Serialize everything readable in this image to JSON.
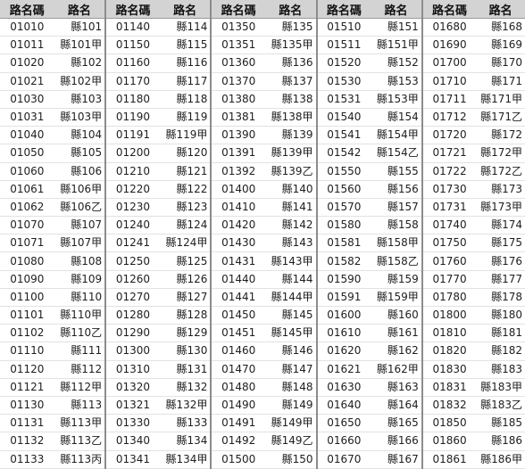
{
  "headers": [
    "路名碼",
    "路名"
  ],
  "rows": [
    [
      "01010",
      "縣101",
      "01140",
      "縣114",
      "01350",
      "縣135",
      "01510",
      "縣151",
      "01680",
      "縣168"
    ],
    [
      "01011",
      "縣101甲",
      "01150",
      "縣115",
      "01351",
      "縣135甲",
      "01511",
      "縣151甲",
      "01690",
      "縣169"
    ],
    [
      "01020",
      "縣102",
      "01160",
      "縣116",
      "01360",
      "縣136",
      "01520",
      "縣152",
      "01700",
      "縣170"
    ],
    [
      "01021",
      "縣102甲",
      "01170",
      "縣117",
      "01370",
      "縣137",
      "01530",
      "縣153",
      "01710",
      "縣171"
    ],
    [
      "01030",
      "縣103",
      "01180",
      "縣118",
      "01380",
      "縣138",
      "01531",
      "縣153甲",
      "01711",
      "縣171甲"
    ],
    [
      "01031",
      "縣103甲",
      "01190",
      "縣119",
      "01381",
      "縣138甲",
      "01540",
      "縣154",
      "01712",
      "縣171乙"
    ],
    [
      "01040",
      "縣104",
      "01191",
      "縣119甲",
      "01390",
      "縣139",
      "01541",
      "縣154甲",
      "01720",
      "縣172"
    ],
    [
      "01050",
      "縣105",
      "01200",
      "縣120",
      "01391",
      "縣139甲",
      "01542",
      "縣154乙",
      "01721",
      "縣172甲"
    ],
    [
      "01060",
      "縣106",
      "01210",
      "縣121",
      "01392",
      "縣139乙",
      "01550",
      "縣155",
      "01722",
      "縣172乙"
    ],
    [
      "01061",
      "縣106甲",
      "01220",
      "縣122",
      "01400",
      "縣140",
      "01560",
      "縣156",
      "01730",
      "縣173"
    ],
    [
      "01062",
      "縣106乙",
      "01230",
      "縣123",
      "01410",
      "縣141",
      "01570",
      "縣157",
      "01731",
      "縣173甲"
    ],
    [
      "01070",
      "縣107",
      "01240",
      "縣124",
      "01420",
      "縣142",
      "01580",
      "縣158",
      "01740",
      "縣174"
    ],
    [
      "01071",
      "縣107甲",
      "01241",
      "縣124甲",
      "01430",
      "縣143",
      "01581",
      "縣158甲",
      "01750",
      "縣175"
    ],
    [
      "01080",
      "縣108",
      "01250",
      "縣125",
      "01431",
      "縣143甲",
      "01582",
      "縣158乙",
      "01760",
      "縣176"
    ],
    [
      "01090",
      "縣109",
      "01260",
      "縣126",
      "01440",
      "縣144",
      "01590",
      "縣159",
      "01770",
      "縣177"
    ],
    [
      "01100",
      "縣110",
      "01270",
      "縣127",
      "01441",
      "縣144甲",
      "01591",
      "縣159甲",
      "01780",
      "縣178"
    ],
    [
      "01101",
      "縣110甲",
      "01280",
      "縣128",
      "01450",
      "縣145",
      "01600",
      "縣160",
      "01800",
      "縣180"
    ],
    [
      "01102",
      "縣110乙",
      "01290",
      "縣129",
      "01451",
      "縣145甲",
      "01610",
      "縣161",
      "01810",
      "縣181"
    ],
    [
      "01110",
      "縣111",
      "01300",
      "縣130",
      "01460",
      "縣146",
      "01620",
      "縣162",
      "01820",
      "縣182"
    ],
    [
      "01120",
      "縣112",
      "01310",
      "縣131",
      "01470",
      "縣147",
      "01621",
      "縣162甲",
      "01830",
      "縣183"
    ],
    [
      "01121",
      "縣112甲",
      "01320",
      "縣132",
      "01480",
      "縣148",
      "01630",
      "縣163",
      "01831",
      "縣183甲"
    ],
    [
      "01130",
      "縣113",
      "01321",
      "縣132甲",
      "01490",
      "縣149",
      "01640",
      "縣164",
      "01832",
      "縣183乙"
    ],
    [
      "01131",
      "縣113甲",
      "01330",
      "縣133",
      "01491",
      "縣149甲",
      "01650",
      "縣165",
      "01850",
      "縣185"
    ],
    [
      "01132",
      "縣113乙",
      "01340",
      "縣134",
      "01492",
      "縣149乙",
      "01660",
      "縣166",
      "01860",
      "縣186"
    ],
    [
      "01133",
      "縣113丙",
      "01341",
      "縣134甲",
      "01500",
      "縣150",
      "01670",
      "縣167",
      "01861",
      "縣186甲"
    ]
  ]
}
